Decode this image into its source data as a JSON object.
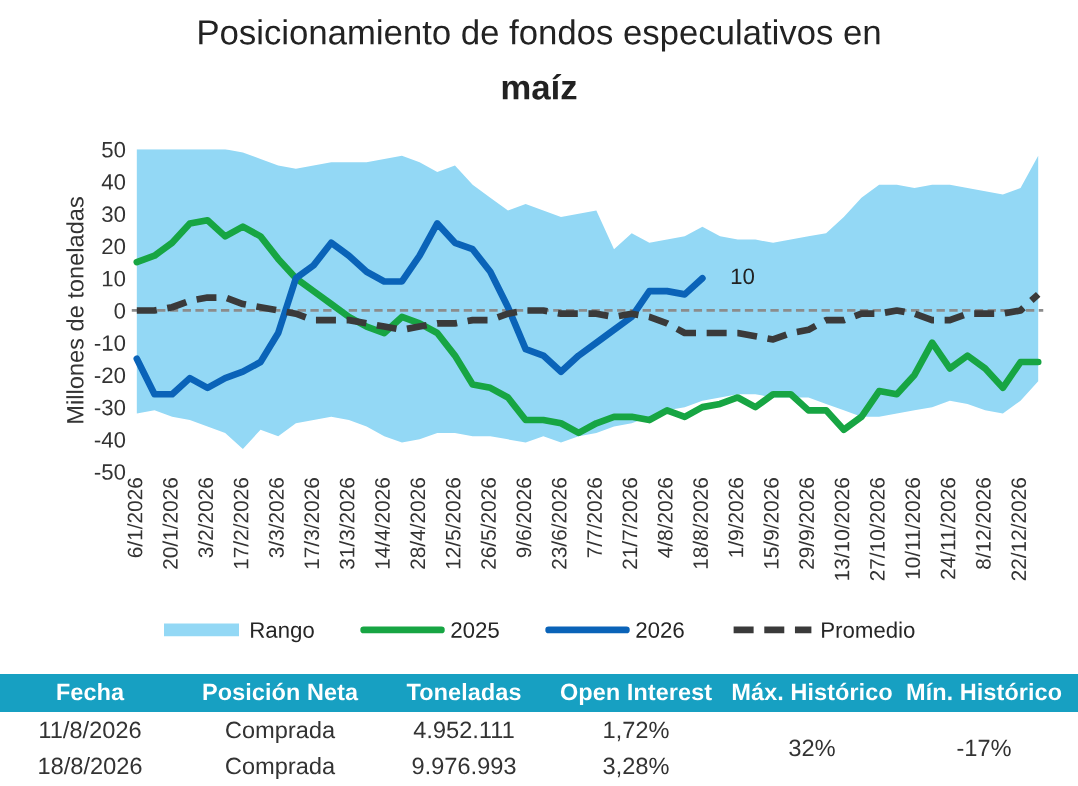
{
  "chart_data": {
    "type": "line",
    "title": "Posicionamiento de fondos especulativos en",
    "subtitle": "maíz",
    "ylabel": "Millones de toneladas",
    "categories": [
      "6/1/2026",
      null,
      "20/1/2026",
      null,
      "3/2/2026",
      null,
      "17/2/2026",
      null,
      "3/3/2026",
      null,
      "17/3/2026",
      null,
      "31/3/2026",
      null,
      "14/4/2026",
      null,
      "28/4/2026",
      null,
      "12/5/2026",
      null,
      "26/5/2026",
      null,
      "9/6/2026",
      null,
      "23/6/2026",
      null,
      "7/7/2026",
      null,
      "21/7/2026",
      null,
      "4/8/2026",
      null,
      "18/8/2026",
      null,
      "1/9/2026",
      null,
      "15/9/2026",
      null,
      "29/9/2026",
      null,
      "13/10/2026",
      null,
      "27/10/2026",
      null,
      "10/11/2026",
      null,
      "24/11/2026",
      null,
      "8/12/2026",
      null,
      "22/12/2026",
      null
    ],
    "series": [
      {
        "name": "Rango",
        "type": "area",
        "color": "#93d8f5",
        "values": [
          null,
          null,
          null,
          null,
          null,
          null,
          null,
          null,
          null,
          null,
          null,
          null,
          null,
          null,
          null,
          null,
          null,
          null,
          null,
          null,
          null,
          null,
          null,
          null,
          null,
          null,
          null,
          null,
          null,
          null,
          null,
          null,
          null,
          null,
          null,
          null,
          null,
          null,
          null,
          null,
          null,
          null,
          null,
          null,
          null,
          null,
          null,
          null,
          null,
          null,
          null,
          null
        ],
        "lower": [
          -32,
          -31,
          -33,
          -34,
          -36,
          -38,
          -43,
          -37,
          -39,
          -35,
          -34,
          -33,
          -34,
          -36,
          -39,
          -41,
          -40,
          -38,
          -38,
          -39,
          -39,
          -40,
          -41,
          -39,
          -41,
          -39,
          -38,
          -36,
          -35,
          -33,
          -31,
          -30,
          -28,
          -27,
          -26,
          -26,
          -27,
          -27,
          -27,
          -29,
          -31,
          -33,
          -33,
          -32,
          -31,
          -30,
          -28,
          -29,
          -31,
          -32,
          -28,
          -22
        ],
        "upper": [
          50,
          50,
          50,
          50,
          50,
          50,
          49,
          47,
          45,
          44,
          45,
          46,
          46,
          46,
          47,
          48,
          46,
          43,
          45,
          39,
          35,
          31,
          33,
          31,
          29,
          30,
          31,
          19,
          24,
          21,
          22,
          23,
          26,
          23,
          22,
          22,
          21,
          22,
          23,
          24,
          29,
          35,
          39,
          39,
          38,
          39,
          39,
          38,
          37,
          36,
          38,
          48
        ]
      },
      {
        "name": "2025",
        "color": "#17a543",
        "values": [
          15,
          17,
          21,
          27,
          28,
          23,
          26,
          23,
          16,
          10,
          6,
          2,
          -2,
          -5,
          -7,
          -2,
          -4,
          -7,
          -14,
          -23,
          -24,
          -27,
          -34,
          -34,
          -35,
          -38,
          -35,
          -33,
          -33,
          -34,
          -31,
          -33,
          -30,
          -29,
          -27,
          -30,
          -26,
          -26,
          -31,
          -31,
          -37,
          -33,
          -25,
          -26,
          -20,
          -10,
          -18,
          -14,
          -18,
          -24,
          -16,
          -16
        ]
      },
      {
        "name": "2026",
        "color": "#0a63b8",
        "values": [
          -15,
          -26,
          -26,
          -21,
          -24,
          -21,
          -19,
          -16,
          -7,
          10,
          14,
          21,
          17,
          12,
          9,
          9,
          17,
          27,
          21,
          19,
          12,
          1,
          -12,
          -14,
          -19,
          -14,
          -10,
          -6,
          -2,
          6,
          6,
          5,
          10,
          null,
          null,
          null,
          null,
          null,
          null,
          null,
          null,
          null,
          null,
          null,
          null,
          null,
          null,
          null,
          null,
          null,
          null,
          null
        ],
        "value_labels": [
          null,
          null,
          null,
          null,
          null,
          null,
          null,
          null,
          null,
          null,
          null,
          null,
          null,
          null,
          null,
          null,
          null,
          null,
          null,
          null,
          null,
          null,
          null,
          null,
          null,
          null,
          null,
          null,
          null,
          null,
          null,
          null,
          "10",
          null,
          null,
          null,
          null,
          null,
          null,
          null,
          null,
          null,
          null,
          null,
          null,
          null,
          null,
          null,
          null,
          null,
          null,
          null
        ]
      },
      {
        "name": "Promedio",
        "color": "#3a3a3a",
        "line_style": "dashed",
        "values": [
          0,
          0,
          1,
          3,
          4,
          4,
          2,
          1,
          0,
          -1,
          -3,
          -3,
          -3,
          -4,
          -5,
          -6,
          -5,
          -4,
          -4,
          -3,
          -3,
          -1,
          0,
          0,
          -1,
          -1,
          -1,
          -2,
          -1,
          -2,
          -4,
          -7,
          -7,
          -7,
          -7,
          -8,
          -9,
          -7,
          -6,
          -3,
          -3,
          -1,
          -1,
          0,
          -1,
          -3,
          -3,
          -1,
          -1,
          -1,
          0,
          5
        ]
      }
    ],
    "ylim": [
      -50,
      50
    ],
    "yticks": [
      -50,
      -40,
      -30,
      -20,
      -10,
      0,
      10,
      20,
      30,
      40,
      50
    ],
    "grid": false,
    "legend": "bottom",
    "ref_lines": [
      {
        "axis": "y",
        "value": 0,
        "color": "#8c8c8c",
        "line_style": "dashed"
      }
    ],
    "annotations": [
      "Fecha",
      "Posición Neta",
      "Toneladas",
      "Open Interest",
      "Máx. Histórico",
      "Mín. Histórico",
      "11/8/2026",
      "Comprada",
      "4.952.111",
      "1,72%",
      "18/8/2026",
      "Comprada",
      "9.976.993",
      "3,28%",
      "32%",
      "-17%"
    ]
  }
}
